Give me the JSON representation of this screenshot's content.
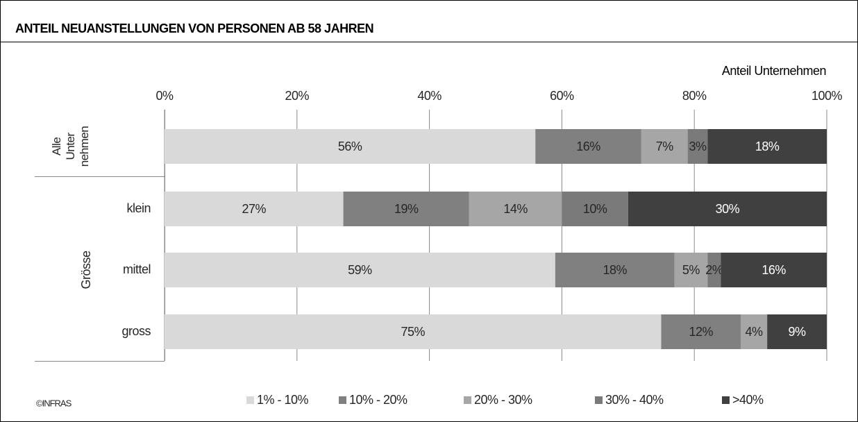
{
  "chart_data": {
    "type": "stacked-barh",
    "title": "ANTEIL NEUANSTELLUNGEN VON PERSONEN AB 58 JAHREN",
    "x_label": "Anteil Unternehmen",
    "group_label": "Grösse",
    "source": "©INFRAS",
    "categories": [
      "Alle Unter nehmen",
      "klein",
      "mittel",
      "gross"
    ],
    "xlim": [
      0,
      100
    ],
    "xticks": [
      {
        "value": 0,
        "label": "0%"
      },
      {
        "value": 20,
        "label": "20%"
      },
      {
        "value": 40,
        "label": "40%"
      },
      {
        "value": 60,
        "label": "60%"
      },
      {
        "value": 80,
        "label": "80%"
      },
      {
        "value": 100,
        "label": "100%"
      }
    ],
    "grid": true,
    "legend": "bottom",
    "series": [
      {
        "name": "1% - 10%",
        "color": "#d9d9d9",
        "label_color": "#262626",
        "values": [
          56,
          27,
          59,
          75
        ],
        "value_labels": [
          "56%",
          "27%",
          "59%",
          "75%"
        ]
      },
      {
        "name": "10% - 20%",
        "color": "#808080",
        "label_color": "#262626",
        "values": [
          16,
          19,
          18,
          12
        ],
        "value_labels": [
          "16%",
          "19%",
          "18%",
          "12%"
        ]
      },
      {
        "name": "20% - 30%",
        "color": "#a6a6a6",
        "label_color": "#262626",
        "values": [
          7,
          14,
          5,
          4
        ],
        "value_labels": [
          "7%",
          "14%",
          "5%",
          "4%"
        ]
      },
      {
        "name": "30% - 40%",
        "color": "#7a7a7a",
        "label_color": "#262626",
        "values": [
          3,
          10,
          2,
          null
        ],
        "value_labels": [
          "3%",
          "10%",
          "2%",
          null
        ]
      },
      {
        "name": ">40%",
        "color": "#404040",
        "label_color": "#ffffff",
        "values": [
          18,
          30,
          16,
          9
        ],
        "value_labels": [
          "18%",
          "30%",
          "16%",
          "9%"
        ]
      }
    ]
  }
}
